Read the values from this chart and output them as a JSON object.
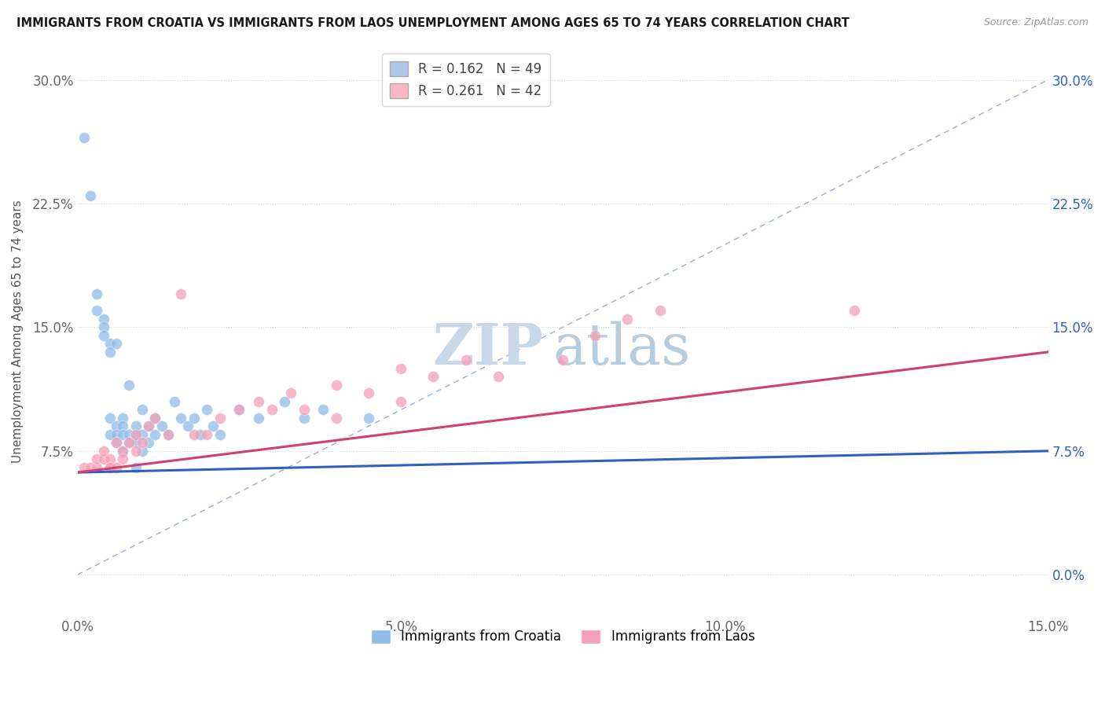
{
  "title": "IMMIGRANTS FROM CROATIA VS IMMIGRANTS FROM LAOS UNEMPLOYMENT AMONG AGES 65 TO 74 YEARS CORRELATION CHART",
  "source": "Source: ZipAtlas.com",
  "ylabel": "Unemployment Among Ages 65 to 74 years",
  "xlim": [
    0.0,
    0.15
  ],
  "ylim": [
    -0.025,
    0.32
  ],
  "xticks": [
    0.0,
    0.05,
    0.1,
    0.15
  ],
  "xtick_labels": [
    "0.0%",
    "5.0%",
    "10.0%",
    "15.0%"
  ],
  "yticks": [
    0.0,
    0.075,
    0.15,
    0.225,
    0.3
  ],
  "ytick_labels_left": [
    "",
    "7.5%",
    "15.0%",
    "22.5%",
    "30.0%"
  ],
  "ytick_labels_right": [
    "0.0%",
    "7.5%",
    "15.0%",
    "22.5%",
    "30.0%"
  ],
  "legend_top": [
    {
      "label": "R = 0.162   N = 49",
      "facecolor": "#aec6e8",
      "edgecolor": "#aaaaaa"
    },
    {
      "label": "R = 0.261   N = 42",
      "facecolor": "#f9b8c8",
      "edgecolor": "#aaaaaa"
    }
  ],
  "legend_bottom": [
    "Immigrants from Croatia",
    "Immigrants from Laos"
  ],
  "croatia_color": "#90bce8",
  "laos_color": "#f4a0b8",
  "croatia_trend_color": "#3060c0",
  "laos_trend_color": "#d04070",
  "diagonal_color": "#9ab0d0",
  "watermark_zip_color": "#c8d8e8",
  "watermark_atlas_color": "#b8cce0",
  "croatia_x": [
    0.001,
    0.002,
    0.003,
    0.003,
    0.004,
    0.004,
    0.004,
    0.005,
    0.005,
    0.005,
    0.005,
    0.006,
    0.006,
    0.006,
    0.006,
    0.007,
    0.007,
    0.007,
    0.007,
    0.008,
    0.008,
    0.008,
    0.009,
    0.009,
    0.009,
    0.009,
    0.01,
    0.01,
    0.01,
    0.011,
    0.011,
    0.012,
    0.012,
    0.013,
    0.014,
    0.015,
    0.016,
    0.017,
    0.018,
    0.019,
    0.02,
    0.021,
    0.022,
    0.025,
    0.028,
    0.032,
    0.035,
    0.038,
    0.045
  ],
  "croatia_y": [
    0.265,
    0.23,
    0.17,
    0.16,
    0.155,
    0.15,
    0.145,
    0.14,
    0.135,
    0.095,
    0.085,
    0.14,
    0.09,
    0.085,
    0.08,
    0.095,
    0.09,
    0.085,
    0.075,
    0.115,
    0.085,
    0.08,
    0.09,
    0.085,
    0.08,
    0.065,
    0.1,
    0.085,
    0.075,
    0.09,
    0.08,
    0.095,
    0.085,
    0.09,
    0.085,
    0.105,
    0.095,
    0.09,
    0.095,
    0.085,
    0.1,
    0.09,
    0.085,
    0.1,
    0.095,
    0.105,
    0.095,
    0.1,
    0.095
  ],
  "croatia_trend": [
    0.062,
    0.075
  ],
  "laos_x": [
    0.001,
    0.002,
    0.003,
    0.003,
    0.004,
    0.004,
    0.005,
    0.005,
    0.005,
    0.006,
    0.006,
    0.007,
    0.007,
    0.008,
    0.009,
    0.009,
    0.01,
    0.011,
    0.012,
    0.014,
    0.016,
    0.018,
    0.02,
    0.022,
    0.025,
    0.028,
    0.03,
    0.033,
    0.035,
    0.04,
    0.04,
    0.045,
    0.05,
    0.05,
    0.055,
    0.06,
    0.065,
    0.075,
    0.08,
    0.085,
    0.09,
    0.12
  ],
  "laos_y": [
    0.065,
    0.065,
    0.065,
    0.07,
    0.07,
    0.075,
    0.065,
    0.07,
    0.065,
    0.08,
    0.065,
    0.075,
    0.07,
    0.08,
    0.075,
    0.085,
    0.08,
    0.09,
    0.095,
    0.085,
    0.17,
    0.085,
    0.085,
    0.095,
    0.1,
    0.105,
    0.1,
    0.11,
    0.1,
    0.095,
    0.115,
    0.11,
    0.105,
    0.125,
    0.12,
    0.13,
    0.12,
    0.13,
    0.145,
    0.155,
    0.16,
    0.16
  ],
  "laos_trend": [
    0.062,
    0.135
  ]
}
